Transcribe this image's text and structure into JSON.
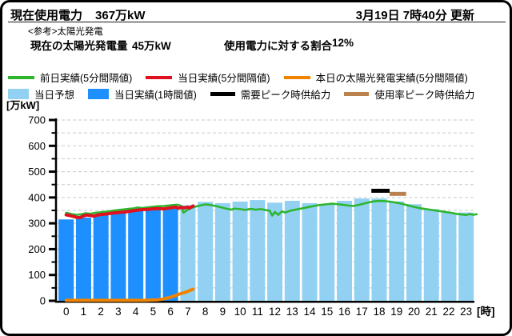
{
  "colors": {
    "prev_day_line": "#2db52d",
    "today_line": "#e0101e",
    "solar_line": "#f08300",
    "forecast_bar": "#92d1f2",
    "actual_bar": "#1e8fff",
    "demand_peak": "#000000",
    "usage_peak": "#b9824f",
    "grid": "#c9c9c9",
    "axis": "#000000",
    "frame_border": "#000000"
  },
  "header": {
    "current_power_label": "現在使用電力",
    "current_power_value": "367万kW",
    "updated": "3月19日 7時40分 更新",
    "solar_ref_note": "<参考>太陽光発電",
    "solar_amount_label": "現在の太陽光発電量",
    "solar_amount_value": "45万kW",
    "solar_ratio_label": "使用電力に対する割合",
    "solar_ratio_value": "12%"
  },
  "legend": {
    "prev_day": "前日実績(5分間隔値)",
    "today_actual": "当日実績(5分間隔値)",
    "solar_actual": "本日の太陽光発電実績(5分間隔値)",
    "forecast": "当日予想",
    "hourly_actual": "当日実績(1時間値)",
    "demand_peak": "需要ピーク時供給力",
    "usage_peak": "使用率ピーク時供給力"
  },
  "chart_data": {
    "type": "bar+line",
    "ylabel": "[万kW]",
    "x_unit_label": "[時]",
    "ylim": [
      0,
      700
    ],
    "yticks": [
      0,
      100,
      200,
      300,
      400,
      500,
      600,
      700
    ],
    "grid_interval": 50,
    "xticks": [
      "0",
      "1",
      "2",
      "3",
      "4",
      "5",
      "6",
      "7",
      "8",
      "9",
      "10",
      "11",
      "12",
      "13",
      "14",
      "15",
      "16",
      "17",
      "18",
      "19",
      "20",
      "21",
      "22",
      "23"
    ],
    "bars_actual": {
      "name": "当日実績(1時間値)",
      "hours": [
        0,
        1,
        2,
        3,
        4,
        5,
        6
      ],
      "values": [
        315,
        322,
        332,
        340,
        347,
        351,
        358
      ]
    },
    "bars_forecast": {
      "name": "当日予想",
      "hours": [
        7,
        8,
        9,
        10,
        11,
        12,
        13,
        14,
        15,
        16,
        17,
        18,
        19,
        20,
        21,
        22,
        23
      ],
      "values": [
        370,
        383,
        378,
        384,
        390,
        380,
        387,
        378,
        373,
        387,
        396,
        396,
        385,
        374,
        355,
        341,
        342
      ]
    },
    "line_prev_day": {
      "name": "前日実績(5分間隔値)",
      "points": [
        [
          0,
          341
        ],
        [
          0.3,
          336
        ],
        [
          0.6,
          333
        ],
        [
          0.9,
          335
        ],
        [
          1.1,
          339
        ],
        [
          1.4,
          337
        ],
        [
          1.7,
          341
        ],
        [
          2,
          343
        ],
        [
          2.4,
          346
        ],
        [
          2.8,
          350
        ],
        [
          3.2,
          353
        ],
        [
          3.6,
          356
        ],
        [
          3.9,
          358
        ],
        [
          4.1,
          361
        ],
        [
          4.4,
          359
        ],
        [
          4.7,
          362
        ],
        [
          5,
          364
        ],
        [
          5.3,
          366
        ],
        [
          5.6,
          367
        ],
        [
          5.9,
          369
        ],
        [
          6.2,
          371
        ],
        [
          6.4,
          372
        ],
        [
          6.6,
          368
        ],
        [
          6.75,
          341
        ],
        [
          6.9,
          349
        ],
        [
          7.1,
          357
        ],
        [
          7.4,
          364
        ],
        [
          7.7,
          369
        ],
        [
          8,
          373
        ],
        [
          8.3,
          371
        ],
        [
          8.6,
          367
        ],
        [
          8.9,
          362
        ],
        [
          9.2,
          357
        ],
        [
          9.5,
          353
        ],
        [
          9.7,
          357
        ],
        [
          10,
          355
        ],
        [
          10.3,
          352
        ],
        [
          10.6,
          356
        ],
        [
          10.9,
          353
        ],
        [
          11.2,
          355
        ],
        [
          11.5,
          351
        ],
        [
          11.7,
          349
        ],
        [
          11.85,
          330
        ],
        [
          12,
          344
        ],
        [
          12.2,
          333
        ],
        [
          12.4,
          346
        ],
        [
          12.6,
          342
        ],
        [
          12.9,
          349
        ],
        [
          13.2,
          353
        ],
        [
          13.5,
          357
        ],
        [
          13.8,
          361
        ],
        [
          14.1,
          365
        ],
        [
          14.4,
          369
        ],
        [
          14.7,
          372
        ],
        [
          15,
          374
        ],
        [
          15.3,
          376
        ],
        [
          15.6,
          374
        ],
        [
          15.9,
          372
        ],
        [
          16.2,
          369
        ],
        [
          16.5,
          367
        ],
        [
          16.8,
          371
        ],
        [
          17.1,
          376
        ],
        [
          17.4,
          381
        ],
        [
          17.7,
          385
        ],
        [
          18,
          387
        ],
        [
          18.3,
          386
        ],
        [
          18.6,
          384
        ],
        [
          18.9,
          381
        ],
        [
          19.2,
          377
        ],
        [
          19.5,
          372
        ],
        [
          19.8,
          367
        ],
        [
          20.1,
          362
        ],
        [
          20.4,
          358
        ],
        [
          20.7,
          355
        ],
        [
          21,
          352
        ],
        [
          21.3,
          349
        ],
        [
          21.6,
          346
        ],
        [
          21.9,
          343
        ],
        [
          22.2,
          340
        ],
        [
          22.5,
          336
        ],
        [
          22.8,
          334
        ],
        [
          23,
          332
        ],
        [
          23.2,
          336
        ],
        [
          23.4,
          333
        ],
        [
          23.6,
          335
        ]
      ]
    },
    "line_today": {
      "name": "当日実績(5分間隔値)",
      "points": [
        [
          0,
          333
        ],
        [
          0.2,
          330
        ],
        [
          0.4,
          327
        ],
        [
          0.6,
          323
        ],
        [
          0.8,
          322
        ],
        [
          1,
          329
        ],
        [
          1.2,
          332
        ],
        [
          1.4,
          330
        ],
        [
          1.6,
          328
        ],
        [
          1.8,
          332
        ],
        [
          2,
          334
        ],
        [
          2.3,
          336
        ],
        [
          2.6,
          339
        ],
        [
          2.9,
          341
        ],
        [
          3.2,
          343
        ],
        [
          3.5,
          345
        ],
        [
          3.8,
          348
        ],
        [
          4.1,
          351
        ],
        [
          4.4,
          353
        ],
        [
          4.7,
          354
        ],
        [
          5,
          356
        ],
        [
          5.3,
          357
        ],
        [
          5.6,
          356
        ],
        [
          5.9,
          359
        ],
        [
          6.1,
          361
        ],
        [
          6.3,
          363
        ],
        [
          6.45,
          358
        ],
        [
          6.6,
          362
        ],
        [
          6.8,
          360
        ],
        [
          7,
          363
        ],
        [
          7.1,
          359
        ],
        [
          7.2,
          364
        ],
        [
          7.3,
          367
        ]
      ]
    },
    "line_solar": {
      "name": "本日の太陽光発電実績(5分間隔値)",
      "points": [
        [
          0,
          2
        ],
        [
          0.5,
          2
        ],
        [
          1,
          2
        ],
        [
          1.5,
          2
        ],
        [
          2,
          2
        ],
        [
          2.5,
          2
        ],
        [
          3,
          2
        ],
        [
          3.5,
          2
        ],
        [
          4,
          2
        ],
        [
          4.5,
          2
        ],
        [
          5,
          3
        ],
        [
          5.3,
          4
        ],
        [
          5.5,
          6
        ],
        [
          5.7,
          9
        ],
        [
          5.9,
          12
        ],
        [
          6.1,
          16
        ],
        [
          6.3,
          21
        ],
        [
          6.5,
          26
        ],
        [
          6.7,
          30
        ],
        [
          6.9,
          34
        ],
        [
          7.05,
          38
        ],
        [
          7.15,
          41
        ],
        [
          7.3,
          45
        ]
      ]
    },
    "segment_demand_peak": {
      "name": "需要ピーク時供給力",
      "x_start": 17.55,
      "x_end": 18.6,
      "value": 426
    },
    "segment_usage_peak": {
      "name": "使用率ピーク時供給力",
      "x_start": 18.6,
      "x_end": 19.55,
      "value": 414
    }
  }
}
